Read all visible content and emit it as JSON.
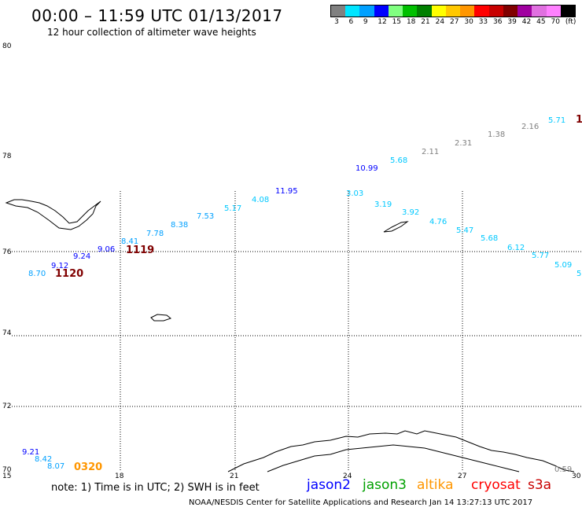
{
  "title": "00:00 – 11:59 UTC 01/13/2017",
  "subtitle": "12 hour collection of altimeter wave heights",
  "legend": {
    "labels": [
      "3",
      "6",
      "9",
      "12",
      "15",
      "18",
      "21",
      "24",
      "27",
      "30",
      "33",
      "36",
      "39",
      "42",
      "45",
      "70",
      "(ft)"
    ],
    "colors": [
      "#808080",
      "#00e5ff",
      "#00a0ff",
      "#0000ff",
      "#80ff80",
      "#00c000",
      "#008000",
      "#ffff00",
      "#ffc800",
      "#ff9600",
      "#ff0000",
      "#c80000",
      "#800000",
      "#a000a0",
      "#e070e0",
      "#ff80ff",
      "#000000"
    ]
  },
  "axes": {
    "y_labels": [
      "80",
      "78",
      "76",
      "74",
      "72",
      "70"
    ],
    "x_labels": [
      "15",
      "18",
      "21",
      "24",
      "27",
      "30"
    ]
  },
  "observations": [
    {
      "text": "5.71",
      "color": "#00c8ff"
    },
    {
      "text": "2.16",
      "color": "#808080"
    },
    {
      "text": "1.38",
      "color": "#808080"
    },
    {
      "text": "2.31",
      "color": "#808080"
    },
    {
      "text": "2.11",
      "color": "#808080"
    },
    {
      "text": "5.68",
      "color": "#00c8ff"
    },
    {
      "text": "10.99",
      "color": "#0000ff"
    },
    {
      "text": "11.95",
      "color": "#0000ff"
    },
    {
      "text": "4.08",
      "color": "#00c8ff"
    },
    {
      "text": "5.17",
      "color": "#00c8ff"
    },
    {
      "text": "7.53",
      "color": "#00a0ff"
    },
    {
      "text": "8.38",
      "color": "#00a0ff"
    },
    {
      "text": "7.78",
      "color": "#00a0ff"
    },
    {
      "text": "8.41",
      "color": "#00a0ff"
    },
    {
      "text": "9.06",
      "color": "#0000ff"
    },
    {
      "text": "9.24",
      "color": "#0000ff"
    },
    {
      "text": "9.12",
      "color": "#0000ff"
    },
    {
      "text": "8.70",
      "color": "#00a0ff"
    },
    {
      "text": "3.03",
      "color": "#00c8ff"
    },
    {
      "text": "3.19",
      "color": "#00c8ff"
    },
    {
      "text": "3.92",
      "color": "#00c8ff"
    },
    {
      "text": "4.76",
      "color": "#00c8ff"
    },
    {
      "text": "5.47",
      "color": "#00c8ff"
    },
    {
      "text": "5.68",
      "color": "#00c8ff"
    },
    {
      "text": "6.12",
      "color": "#00c8ff"
    },
    {
      "text": "5.77",
      "color": "#00c8ff"
    },
    {
      "text": "5.09",
      "color": "#00c8ff"
    },
    {
      "text": "5",
      "color": "#00c8ff"
    },
    {
      "text": "9.21",
      "color": "#0000ff"
    },
    {
      "text": "8.42",
      "color": "#00a0ff"
    },
    {
      "text": "8.07",
      "color": "#00a0ff"
    },
    {
      "text": "0.59",
      "color": "#808080"
    }
  ],
  "time_labels": [
    {
      "text": "1",
      "color": "#800000"
    },
    {
      "text": "1119",
      "color": "#800000"
    },
    {
      "text": "1120",
      "color": "#800000"
    },
    {
      "text": "0320",
      "color": "#ff9600"
    }
  ],
  "note": "note: 1) Time is in UTC; 2) SWH is in feet",
  "satellites": [
    {
      "name": "jason2",
      "color": "#0000ff"
    },
    {
      "name": "jason3",
      "color": "#00a000"
    },
    {
      "name": "altika",
      "color": "#ff9600"
    },
    {
      "name": "cryosat",
      "color": "#ff0000"
    },
    {
      "name": "s3a",
      "color": "#c80000"
    }
  ],
  "credit": "NOAA/NESDIS Center for Satellite Applications and Research    Jan 14 13:27:13 UTC 2017"
}
